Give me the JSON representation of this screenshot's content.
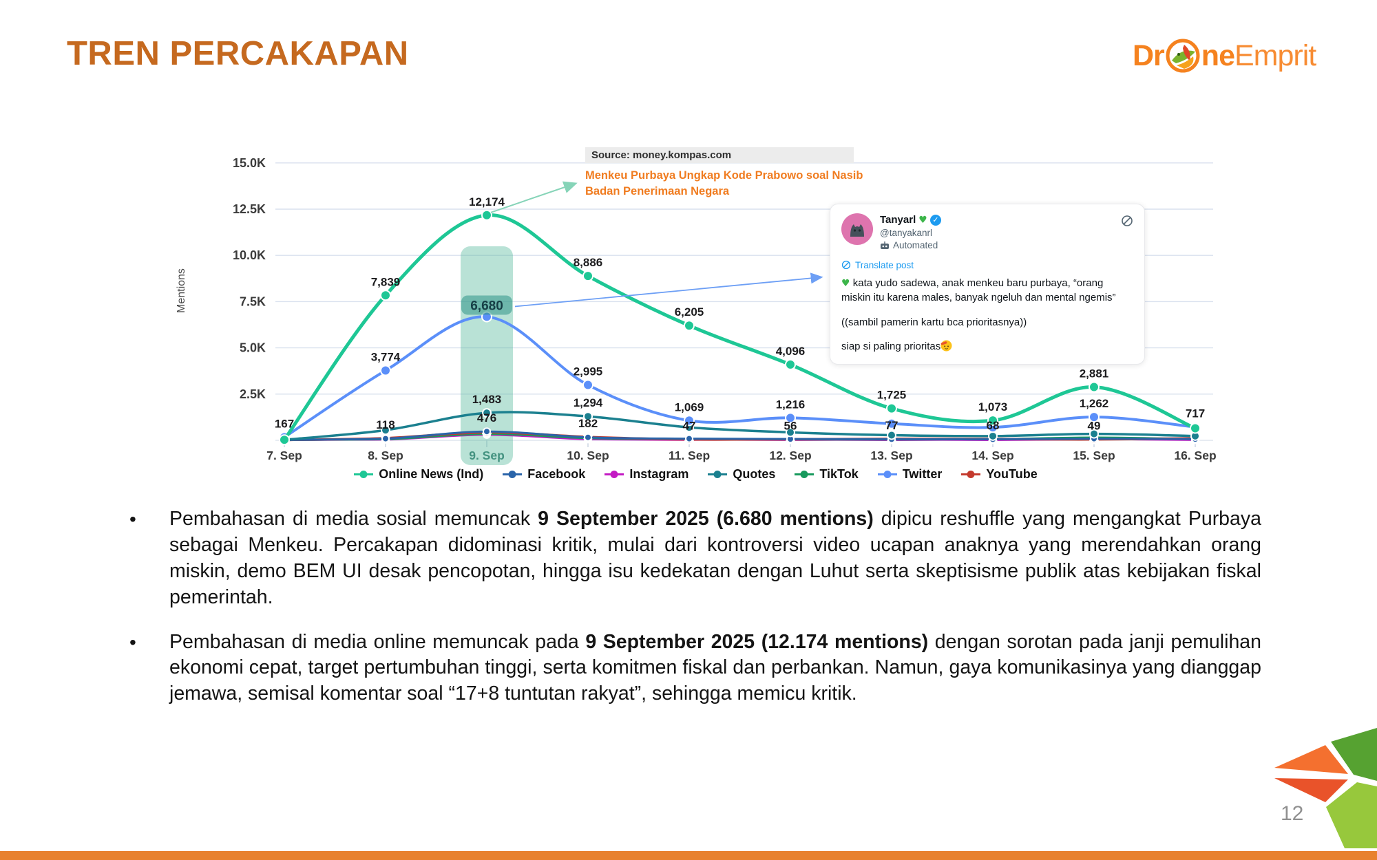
{
  "slide": {
    "title": "TREN PERCAKAPAN",
    "page_number": "12"
  },
  "logo": {
    "part1": "Dr",
    "part2": "ne",
    "part3": "Emprit"
  },
  "chart_data": {
    "type": "line",
    "ylabel": "Mentions",
    "ylim": [
      0,
      15000
    ],
    "grid": true,
    "legend_position": "bottom",
    "y_ticks": [
      "2.5K",
      "5.0K",
      "7.5K",
      "10.0K",
      "12.5K",
      "15.0K"
    ],
    "categories": [
      "7. Sep",
      "8. Sep",
      "9. Sep",
      "10. Sep",
      "11. Sep",
      "12. Sep",
      "13. Sep",
      "14. Sep",
      "15. Sep",
      "16. Sep"
    ],
    "highlighted_category": "9. Sep",
    "series": [
      {
        "name": "Online News (Ind)",
        "color": "#1ec795",
        "width": 5,
        "values": [
          30,
          7839,
          12174,
          8886,
          6205,
          4096,
          1725,
          1073,
          2881,
          650
        ],
        "labels": [
          null,
          "7,839",
          "12,174",
          "8,886",
          "6,205",
          "4,096",
          "1,725",
          "1,073",
          "2,881",
          null
        ]
      },
      {
        "name": "Facebook",
        "color": "#2a64a9",
        "width": 3,
        "values": [
          15,
          90,
          476,
          160,
          90,
          70,
          60,
          55,
          90,
          70
        ],
        "labels": [
          null,
          null,
          "476",
          null,
          null,
          null,
          null,
          null,
          null,
          null
        ]
      },
      {
        "name": "Instagram",
        "color": "#c31ac3",
        "width": 3,
        "values": [
          10,
          40,
          300,
          60,
          30,
          25,
          20,
          20,
          60,
          25
        ],
        "labels": [
          null,
          null,
          null,
          null,
          null,
          null,
          null,
          null,
          null,
          null
        ]
      },
      {
        "name": "Quotes",
        "color": "#1b808f",
        "width": 3.5,
        "values": [
          25,
          550,
          1483,
          1294,
          700,
          430,
          280,
          230,
          350,
          230
        ],
        "labels": [
          null,
          null,
          "1,483",
          "1,294",
          null,
          null,
          null,
          null,
          null,
          null
        ]
      },
      {
        "name": "TikTok",
        "color": "#17995c",
        "width": 3,
        "values": [
          8,
          60,
          350,
          120,
          60,
          50,
          45,
          60,
          150,
          60
        ],
        "labels": [
          null,
          null,
          null,
          null,
          null,
          null,
          null,
          null,
          null,
          null
        ]
      },
      {
        "name": "Twitter",
        "color": "#5b8ff9",
        "width": 4,
        "values": [
          167,
          3774,
          6680,
          2995,
          1069,
          1216,
          900,
          700,
          1262,
          717
        ],
        "labels": [
          "167",
          "3,774",
          "6,680",
          "2,995",
          "1,069",
          "1,216",
          null,
          null,
          "1,262",
          "717"
        ]
      },
      {
        "name": "YouTube",
        "color": "#c43a2d",
        "width": 3.5,
        "values": [
          18,
          118,
          430,
          182,
          47,
          56,
          77,
          68,
          49,
          110
        ],
        "labels": [
          null,
          "118",
          null,
          "182",
          "47",
          "56",
          "77",
          "68",
          "49",
          null
        ]
      }
    ],
    "boxed_label": {
      "series": "Twitter",
      "index": 2
    }
  },
  "annotation": {
    "source": "Source: money.kompas.com",
    "headline": "Menkeu Purbaya Ungkap Kode Prabowo soal Nasib Badan Penerimaan Negara"
  },
  "tweet": {
    "name": "Tanyarl",
    "handle": "@tanyakanrl",
    "automated_label": "Automated",
    "translate_label": "Translate post",
    "line1": "kata yudo sadewa, anak menkeu baru purbaya, “orang miskin itu karena males, banyak ngeluh dan mental ngemis”",
    "line2": "((sambil pamerin kartu bca prioritasnya))",
    "line3": "siap si paling prioritas"
  },
  "bullets": [
    {
      "segments": [
        {
          "text": "Pembahasan di media sosial memuncak ",
          "bold": false
        },
        {
          "text": "9 September 2025 (6.680 mentions)",
          "bold": true
        },
        {
          "text": " dipicu reshuffle yang mengangkat Purbaya sebagai Menkeu. Percakapan didominasi kritik, mulai dari kontroversi video ucapan anaknya yang merendahkan orang miskin, demo BEM UI desak pencopotan, hingga isu kedekatan dengan Luhut serta skeptisisme publik atas kebijakan fiskal pemerintah.",
          "bold": false
        }
      ]
    },
    {
      "segments": [
        {
          "text": "Pembahasan di media online memuncak pada ",
          "bold": false
        },
        {
          "text": "9 September 2025 (12.174 mentions)",
          "bold": true
        },
        {
          "text": " dengan sorotan pada janji pemulihan ekonomi cepat, target pertumbuhan tinggi, serta komitmen fiskal dan perbankan. Namun, gaya komunikasinya yang dianggap jemawa, semisal komentar soal “17+8 tuntutan rakyat”, sehingga memicu kritik.",
          "bold": false
        }
      ]
    }
  ]
}
